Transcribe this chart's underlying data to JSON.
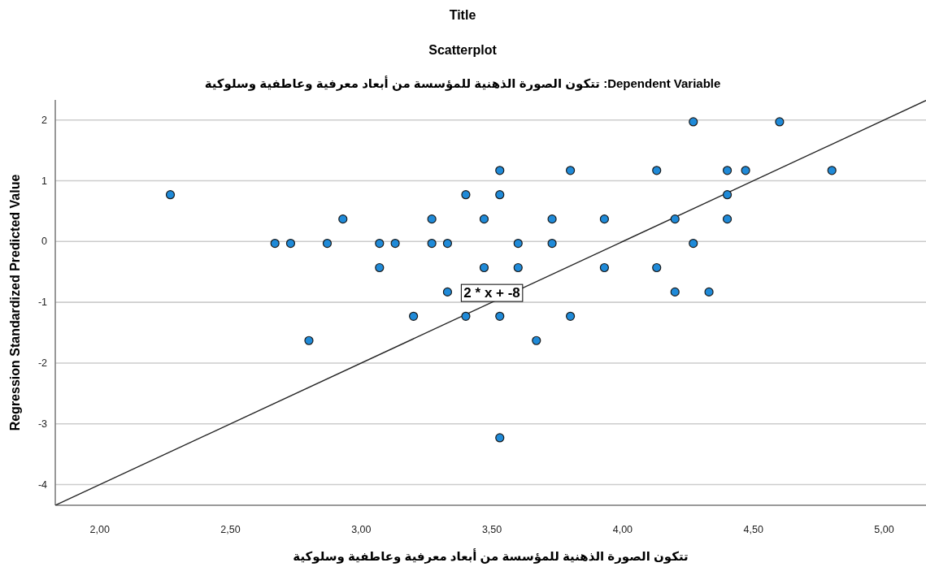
{
  "chart_data": {
    "type": "scatter",
    "title": "Title",
    "subtitle": "Scatterplot",
    "xlabel": "تتكون الصورة الذهنية للمؤسسة من أبعاد معرفية وعاطفية وسلوكية",
    "ylabel": "Regression Standardized Predicted Value",
    "annotations": [
      "Dependent Variable: تتكون الصورة الذهنية للمؤسسة من أبعاد معرفية وعاطفية وسلوكية",
      {
        "text": "2 * x + -8",
        "x": 3.5,
        "y": -1
      }
    ],
    "xlim": [
      1.83,
      5.16
    ],
    "ylim": [
      -4.34,
      2.33
    ],
    "xticks": [
      {
        "value": 2,
        "label": "2,00"
      },
      {
        "value": 2.5,
        "label": "2,50"
      },
      {
        "value": 3,
        "label": "3,00"
      },
      {
        "value": 3.5,
        "label": "3,50"
      },
      {
        "value": 4,
        "label": "4,00"
      },
      {
        "value": 4.5,
        "label": "4,50"
      },
      {
        "value": 5,
        "label": "5,00"
      }
    ],
    "yticks": [
      -4,
      -3,
      -2,
      -1,
      0,
      1,
      2
    ],
    "grid": "y",
    "series": [
      {
        "type": "line",
        "color": "#262626",
        "marker": "none",
        "x": [
          1.83,
          5.16
        ],
        "values": [
          -4.34,
          2.32
        ]
      },
      {
        "color": "#1f8ad8",
        "marker": "circle",
        "x": [
          2.27,
          2.67,
          2.73,
          2.87,
          2.93,
          3.07,
          3.07,
          3.13,
          3.27,
          3.27,
          3.33,
          3.33,
          3.2,
          2.8,
          4.27,
          4.6,
          3.53,
          3.8,
          4.13,
          4.4,
          4.47,
          4.8,
          3.4,
          3.53,
          4.4,
          3.47,
          3.73,
          3.93,
          4.2,
          4.4,
          3.6,
          3.73,
          4.27,
          3.47,
          3.6,
          3.93,
          4.13,
          4.2,
          4.33,
          3.4,
          3.53,
          3.8,
          3.67,
          3.53
        ],
        "values": [
          0.77,
          -0.03,
          -0.03,
          -0.03,
          0.37,
          -0.03,
          -0.43,
          -0.03,
          0.37,
          -0.03,
          -0.03,
          -0.83,
          -1.23,
          -1.63,
          1.97,
          1.97,
          1.17,
          1.17,
          1.17,
          1.17,
          1.17,
          1.17,
          0.77,
          0.77,
          0.77,
          0.37,
          0.37,
          0.37,
          0.37,
          0.37,
          -0.03,
          -0.03,
          -0.03,
          -0.43,
          -0.43,
          -0.43,
          -0.43,
          -0.83,
          -0.83,
          -1.23,
          -1.23,
          -1.23,
          -1.63,
          -3.23
        ]
      }
    ]
  }
}
